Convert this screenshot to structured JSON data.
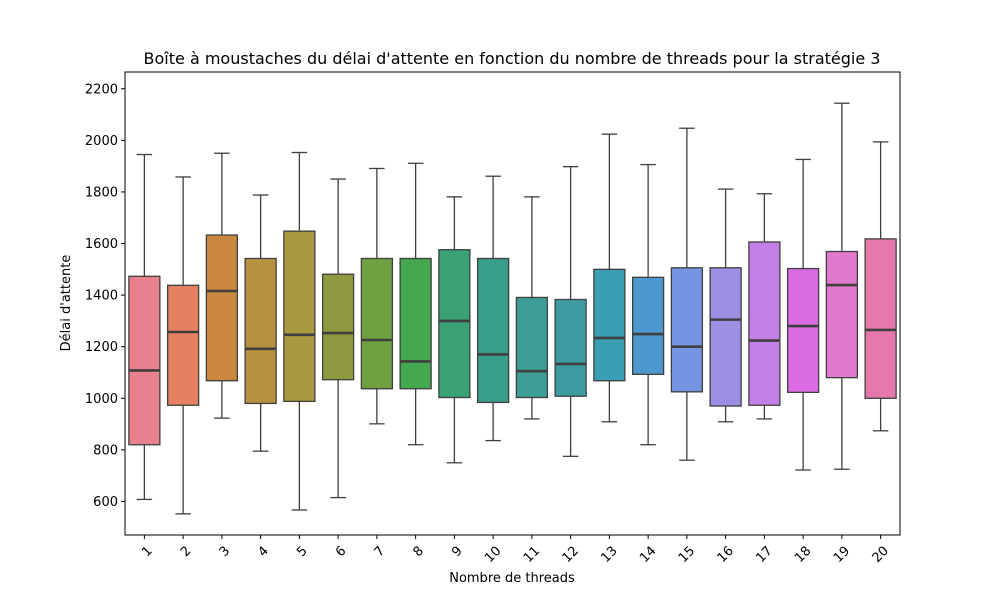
{
  "chart_data": {
    "type": "boxplot",
    "title": "Boîte à moustaches du délai d'attente en fonction du nombre de threads pour la stratégie 3",
    "xlabel": "Nombre de threads",
    "ylabel": "Délai d'attente",
    "ylim": [
      470,
      2265
    ],
    "yticks": [
      600,
      800,
      1000,
      1200,
      1400,
      1600,
      1800,
      2000,
      2200
    ],
    "categories": [
      "1",
      "2",
      "3",
      "4",
      "5",
      "6",
      "7",
      "8",
      "9",
      "10",
      "11",
      "12",
      "13",
      "14",
      "15",
      "16",
      "17",
      "18",
      "19",
      "20"
    ],
    "boxes": [
      {
        "min": 608,
        "q1": 820,
        "median": 1108,
        "q3": 1473,
        "max": 1945,
        "color": "#e8808e"
      },
      {
        "min": 552,
        "q1": 973,
        "median": 1257,
        "q3": 1438,
        "max": 1858,
        "color": "#e58060"
      },
      {
        "min": 923,
        "q1": 1068,
        "median": 1416,
        "q3": 1633,
        "max": 1950,
        "color": "#c98740"
      },
      {
        "min": 795,
        "q1": 980,
        "median": 1192,
        "q3": 1542,
        "max": 1788,
        "color": "#b89140"
      },
      {
        "min": 567,
        "q1": 988,
        "median": 1246,
        "q3": 1648,
        "max": 1953,
        "color": "#a99a40"
      },
      {
        "min": 615,
        "q1": 1072,
        "median": 1253,
        "q3": 1481,
        "max": 1850,
        "color": "#8f9a40"
      },
      {
        "min": 901,
        "q1": 1037,
        "median": 1226,
        "q3": 1542,
        "max": 1891,
        "color": "#6fa140"
      },
      {
        "min": 820,
        "q1": 1037,
        "median": 1143,
        "q3": 1542,
        "max": 1911,
        "color": "#43a84f"
      },
      {
        "min": 750,
        "q1": 1003,
        "median": 1300,
        "q3": 1576,
        "max": 1781,
        "color": "#39a173"
      },
      {
        "min": 836,
        "q1": 984,
        "median": 1170,
        "q3": 1542,
        "max": 1861,
        "color": "#3a9f8a"
      },
      {
        "min": 920,
        "q1": 1003,
        "median": 1105,
        "q3": 1391,
        "max": 1781,
        "color": "#3c9e96"
      },
      {
        "min": 775,
        "q1": 1008,
        "median": 1133,
        "q3": 1383,
        "max": 1898,
        "color": "#3d9ca1"
      },
      {
        "min": 909,
        "q1": 1068,
        "median": 1234,
        "q3": 1500,
        "max": 2024,
        "color": "#3b9fb3"
      },
      {
        "min": 820,
        "q1": 1093,
        "median": 1249,
        "q3": 1469,
        "max": 1906,
        "color": "#4d99cf"
      },
      {
        "min": 760,
        "q1": 1025,
        "median": 1200,
        "q3": 1506,
        "max": 2047,
        "color": "#7594e2"
      },
      {
        "min": 909,
        "q1": 970,
        "median": 1305,
        "q3": 1506,
        "max": 1811,
        "color": "#9a8fe2"
      },
      {
        "min": 920,
        "q1": 973,
        "median": 1224,
        "q3": 1606,
        "max": 1793,
        "color": "#c47fe6"
      },
      {
        "min": 722,
        "q1": 1023,
        "median": 1280,
        "q3": 1503,
        "max": 1926,
        "color": "#db6be3"
      },
      {
        "min": 725,
        "q1": 1080,
        "median": 1439,
        "q3": 1569,
        "max": 2144,
        "color": "#e379cc"
      },
      {
        "min": 874,
        "q1": 1000,
        "median": 1265,
        "q3": 1618,
        "max": 1994,
        "color": "#e677ab"
      }
    ]
  }
}
